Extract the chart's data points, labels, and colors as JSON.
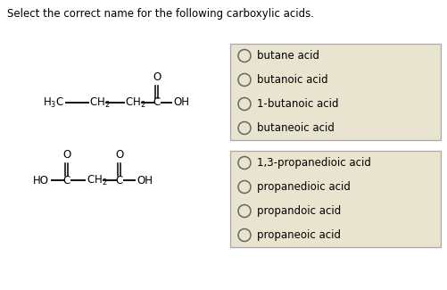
{
  "bg_color": "#ffffff",
  "box_bg": "#e8e4d0",
  "box_border": "#aaaaaa",
  "text_color": "#000000",
  "question_text": "Select the correct name for the following carboxylic acids.",
  "options1": [
    "butane acid",
    "butanoic acid",
    "1-butanoic acid",
    "butaneoic acid"
  ],
  "options2": [
    "1,3-propanedioic acid",
    "propanedioic acid",
    "propandoic acid",
    "propaneoic acid"
  ],
  "font_size": 8.5,
  "mol_font_size": 8.5
}
